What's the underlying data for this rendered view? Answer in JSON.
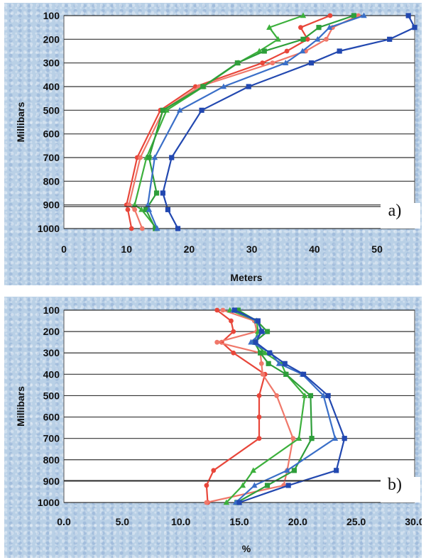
{
  "chart_data": [
    {
      "panel_label": "a)",
      "type": "line",
      "xlabel": "Meters",
      "ylabel": "Millibars",
      "xlim": [
        0,
        56
      ],
      "xticks": [
        "0",
        "10",
        "20",
        "30",
        "40",
        "50"
      ],
      "ylim": [
        1000,
        100
      ],
      "yticks": [
        "100",
        "200",
        "300",
        "400",
        "500",
        "600",
        "700",
        "800",
        "900",
        "1000"
      ],
      "grid": "horizontal",
      "series": [
        {
          "color": "#e8463a",
          "marker": "circle",
          "points": [
            [
              42.5,
              100
            ],
            [
              37.8,
              150
            ],
            [
              38.9,
              200
            ],
            [
              35.6,
              250
            ],
            [
              31.7,
              300
            ],
            [
              21,
              400
            ],
            [
              15.4,
              500
            ],
            [
              11.7,
              700
            ],
            [
              10,
              900
            ],
            [
              10.2,
              920
            ],
            [
              10.8,
              1000
            ]
          ]
        },
        {
          "color": "#f0786a",
          "marker": "circle",
          "points": [
            [
              47,
              100
            ],
            [
              42.9,
              150
            ],
            [
              41.9,
              200
            ],
            [
              38.6,
              250
            ],
            [
              33.3,
              300
            ],
            [
              21.6,
              400
            ],
            [
              15.9,
              500
            ],
            [
              12.2,
              700
            ],
            [
              10.4,
              900
            ],
            [
              11.3,
              920
            ],
            [
              12.5,
              1000
            ]
          ]
        },
        {
          "color": "#3cb03c",
          "marker": "triangle",
          "points": [
            [
              38.2,
              100
            ],
            [
              32.8,
              150
            ],
            [
              34.2,
              200
            ],
            [
              31.2,
              250
            ],
            [
              27.8,
              300
            ],
            [
              22.3,
              400
            ],
            [
              16.4,
              500
            ],
            [
              13.2,
              700
            ],
            [
              11.3,
              900
            ],
            [
              12.4,
              920
            ],
            [
              14.8,
              1000
            ]
          ]
        },
        {
          "color": "#2e9e3a",
          "marker": "square",
          "points": [
            [
              46.3,
              100
            ],
            [
              40.7,
              150
            ],
            [
              38.2,
              200
            ],
            [
              32,
              250
            ],
            [
              27.7,
              300
            ],
            [
              22.2,
              400
            ],
            [
              15.8,
              500
            ],
            [
              13.6,
              700
            ],
            [
              14.8,
              850
            ],
            [
              13.1,
              920
            ],
            [
              14.6,
              1000
            ]
          ]
        },
        {
          "color": "#3a6fc8",
          "marker": "triangle",
          "points": [
            [
              47.9,
              100
            ],
            [
              42.4,
              150
            ],
            [
              40.5,
              200
            ],
            [
              38.1,
              250
            ],
            [
              35.4,
              300
            ],
            [
              25.5,
              400
            ],
            [
              18.5,
              500
            ],
            [
              14.5,
              700
            ],
            [
              13.4,
              900
            ],
            [
              13.6,
              920
            ],
            [
              14.9,
              1000
            ]
          ]
        },
        {
          "color": "#2248b0",
          "marker": "square",
          "points": [
            [
              55,
              100
            ],
            [
              56,
              150
            ],
            [
              52,
              200
            ],
            [
              44,
              250
            ],
            [
              39.5,
              300
            ],
            [
              29.5,
              400
            ],
            [
              22,
              500
            ],
            [
              17.2,
              700
            ],
            [
              15.8,
              850
            ],
            [
              16.6,
              920
            ],
            [
              18.2,
              1000
            ]
          ]
        }
      ]
    },
    {
      "panel_label": "b)",
      "type": "line",
      "xlabel": "%",
      "ylabel": "Millibars",
      "xlim": [
        0,
        30
      ],
      "xticks": [
        "0.0",
        "5.0",
        "10.0",
        "15.0",
        "20.0",
        "25.0",
        "30.0"
      ],
      "ylim": [
        1000,
        100
      ],
      "yticks": [
        "100",
        "200",
        "300",
        "400",
        "500",
        "600",
        "700",
        "800",
        "900",
        "1000"
      ],
      "grid": "horizontal",
      "series": [
        {
          "color": "#e8463a",
          "marker": "circle",
          "points": [
            [
              13.1,
              100
            ],
            [
              14.3,
              150
            ],
            [
              14.5,
              200
            ],
            [
              13.5,
              250
            ],
            [
              14.5,
              300
            ],
            [
              17.2,
              400
            ],
            [
              16.7,
              500
            ],
            [
              16.7,
              600
            ],
            [
              16.7,
              700
            ],
            [
              12.8,
              850
            ],
            [
              12.2,
              920
            ],
            [
              12.3,
              1000
            ]
          ]
        },
        {
          "color": "#f0786a",
          "marker": "circle",
          "points": [
            [
              13.6,
              100
            ],
            [
              16.3,
              150
            ],
            [
              16.5,
              200
            ],
            [
              13.1,
              250
            ],
            [
              16.8,
              300
            ],
            [
              16.9,
              350
            ],
            [
              17,
              400
            ],
            [
              18.2,
              500
            ],
            [
              19.6,
              700
            ],
            [
              19.1,
              850
            ],
            [
              18.8,
              920
            ],
            [
              12.2,
              1000
            ]
          ]
        },
        {
          "color": "#3cb03c",
          "marker": "triangle",
          "points": [
            [
              14.2,
              100
            ],
            [
              16.5,
              150
            ],
            [
              16.6,
              200
            ],
            [
              16.3,
              250
            ],
            [
              17.2,
              300
            ],
            [
              18.6,
              350
            ],
            [
              19,
              400
            ],
            [
              20.6,
              500
            ],
            [
              20.1,
              700
            ],
            [
              16.2,
              850
            ],
            [
              15.3,
              920
            ],
            [
              13.9,
              1000
            ]
          ]
        },
        {
          "color": "#2e9e3a",
          "marker": "square",
          "points": [
            [
              14.9,
              100
            ],
            [
              16.5,
              150
            ],
            [
              17.4,
              200
            ],
            [
              16.3,
              250
            ],
            [
              16.8,
              300
            ],
            [
              17.5,
              350
            ],
            [
              19,
              400
            ],
            [
              21.1,
              500
            ],
            [
              21.2,
              700
            ],
            [
              19.7,
              850
            ],
            [
              17.4,
              920
            ],
            [
              14.8,
              1000
            ]
          ]
        },
        {
          "color": "#3a6fc8",
          "marker": "triangle",
          "points": [
            [
              14.5,
              100
            ],
            [
              16.5,
              150
            ],
            [
              17,
              200
            ],
            [
              16,
              250
            ],
            [
              17.7,
              300
            ],
            [
              18.4,
              350
            ],
            [
              20.4,
              400
            ],
            [
              22.2,
              500
            ],
            [
              23.2,
              700
            ],
            [
              19.1,
              850
            ],
            [
              16.3,
              920
            ],
            [
              14.7,
              1000
            ]
          ]
        },
        {
          "color": "#2248b0",
          "marker": "square",
          "points": [
            [
              14.6,
              100
            ],
            [
              16.6,
              150
            ],
            [
              16.9,
              200
            ],
            [
              16.4,
              250
            ],
            [
              17.6,
              300
            ],
            [
              18.9,
              350
            ],
            [
              20.5,
              400
            ],
            [
              22.6,
              500
            ],
            [
              24,
              700
            ],
            [
              23.3,
              850
            ],
            [
              19.2,
              920
            ],
            [
              15,
              1000
            ]
          ]
        }
      ]
    }
  ]
}
